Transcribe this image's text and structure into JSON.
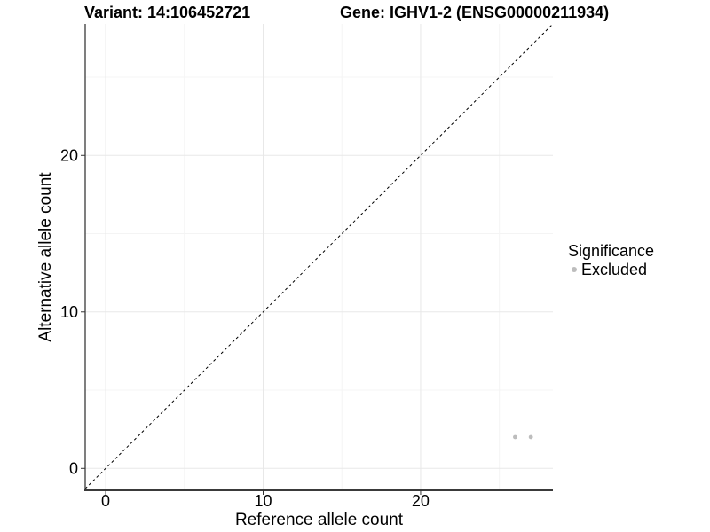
{
  "chart_data": {
    "type": "scatter",
    "titles": {
      "variant": "Variant: 14:106452721",
      "gene": "Gene: IGHV1-2 (ENSG00000211934)"
    },
    "xlabel": "Reference allele count",
    "ylabel": "Alternative allele count",
    "xlim": [
      -1.3,
      28.4
    ],
    "ylim": [
      -1.4,
      28.4
    ],
    "x_ticks": [
      0,
      10,
      20
    ],
    "y_ticks": [
      0,
      10,
      20
    ],
    "x_minor_ticks": [
      5,
      15,
      25
    ],
    "y_minor_ticks": [
      5,
      15,
      25
    ],
    "grid": "major+minor",
    "identity_line": {
      "slope": 1,
      "intercept": 0,
      "style": "dashed"
    },
    "series": [
      {
        "name": "Excluded",
        "color": "#bdbdbd",
        "points": [
          {
            "x": 26,
            "y": 2
          },
          {
            "x": 27,
            "y": 2
          }
        ]
      }
    ],
    "legend": {
      "title": "Significance",
      "position": "right",
      "items": [
        {
          "label": "Excluded",
          "color": "#bdbdbd"
        }
      ]
    }
  },
  "colors": {
    "background": "#ffffff",
    "grid_major": "#e8e8e8",
    "grid_minor": "#f4f4f4",
    "axis_line": "#3a3a3a",
    "tick_mark": "#333333",
    "tick_label": "#000000",
    "identity_line": "#000000",
    "point": "#bdbdbd"
  }
}
